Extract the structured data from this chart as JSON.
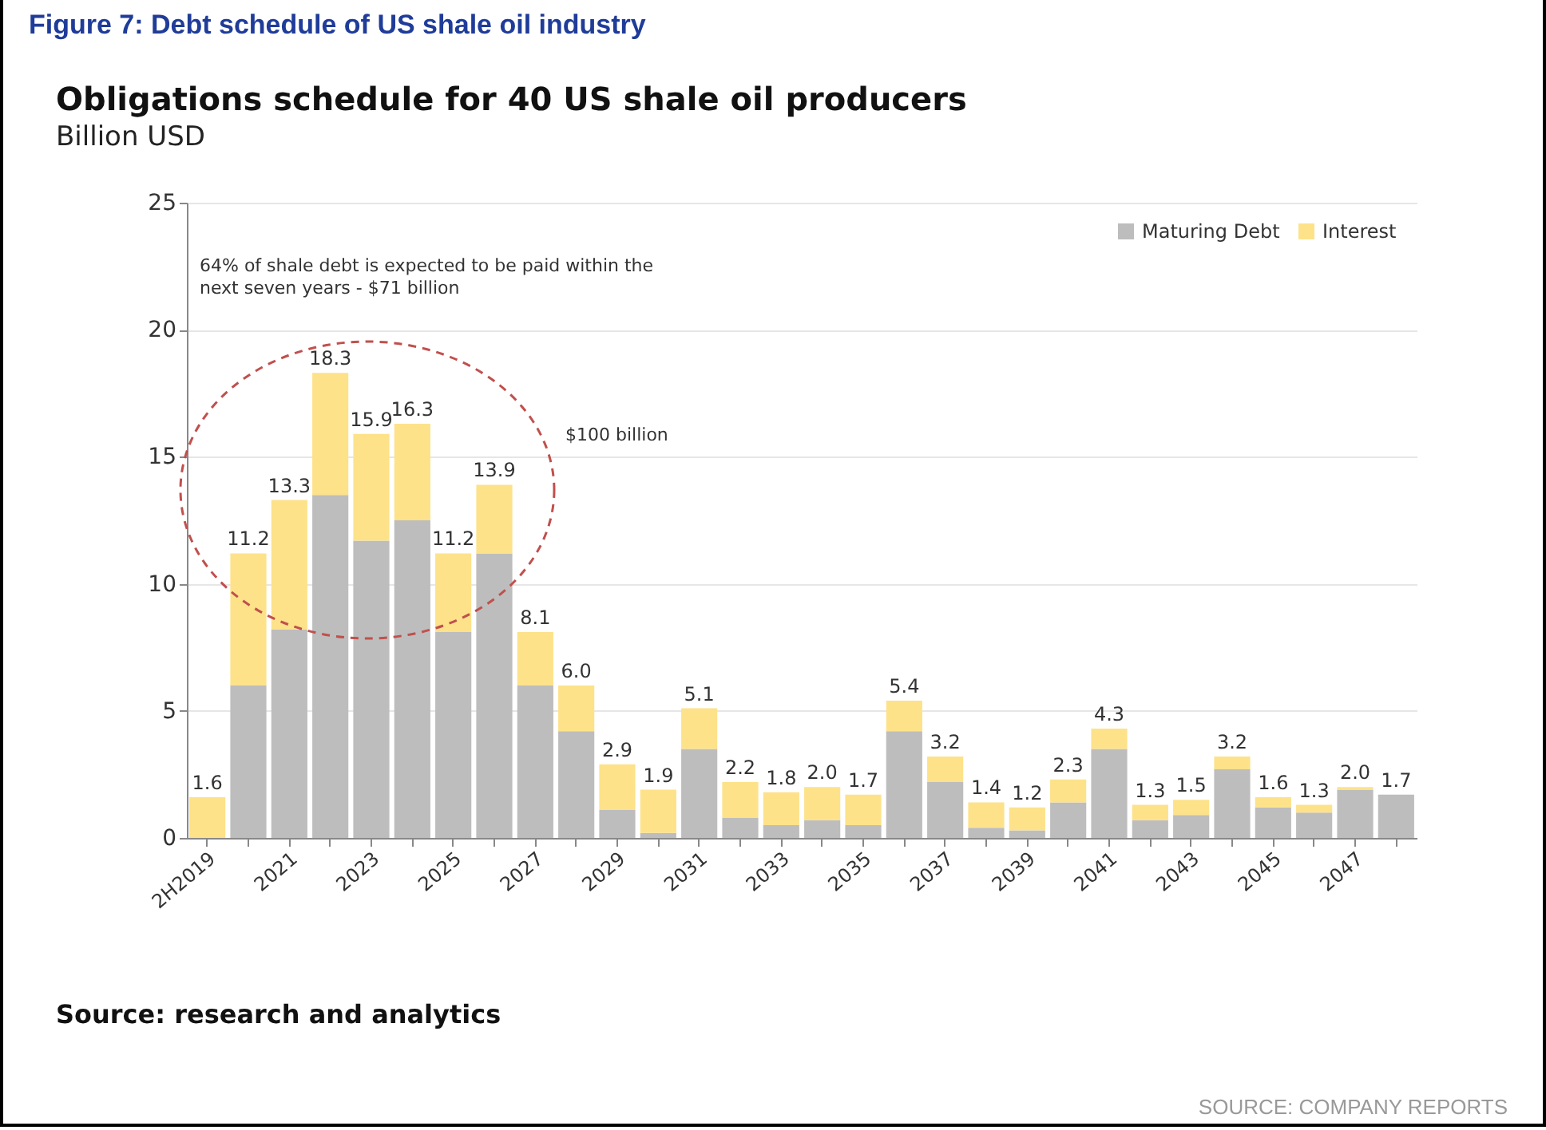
{
  "chart_data": {
    "type": "bar",
    "title": "Figure 7: Debt schedule of US shale oil industry",
    "subtitle": "Obligations schedule for 40 US shale oil producers",
    "ylabel": "Billion USD",
    "categories": [
      "2H2019",
      null,
      "2021",
      null,
      "2023",
      null,
      "2025",
      null,
      "2027",
      null,
      "2029",
      null,
      "2031",
      null,
      "2033",
      null,
      "2035",
      null,
      "2037",
      null,
      "2039",
      null,
      "2041",
      null,
      "2043",
      null,
      "2045",
      null,
      "2047",
      null
    ],
    "stacked": true,
    "series": [
      {
        "name": "Maturing Debt",
        "color": "#bdbdbd",
        "values": [
          0,
          6.0,
          8.2,
          13.5,
          11.7,
          12.5,
          8.1,
          11.2,
          6.0,
          4.2,
          1.1,
          0.2,
          3.5,
          0.8,
          0.5,
          0.7,
          0.5,
          4.2,
          2.2,
          0.4,
          0.3,
          1.4,
          3.5,
          0.7,
          0.9,
          2.7,
          1.2,
          1.0,
          1.9,
          1.7
        ]
      },
      {
        "name": "Interest",
        "color": "#fde28a",
        "values": [
          1.6,
          5.2,
          5.1,
          4.8,
          4.2,
          3.8,
          3.1,
          2.7,
          2.1,
          1.8,
          1.8,
          1.7,
          1.6,
          1.4,
          1.3,
          1.3,
          1.2,
          1.2,
          1.0,
          1.0,
          0.9,
          0.9,
          0.8,
          0.6,
          0.6,
          0.5,
          0.4,
          0.3,
          0.1,
          0
        ]
      }
    ],
    "totals": [
      "1.6",
      "11.2",
      "13.3",
      "18.3",
      "15.9",
      "16.3",
      "11.2",
      "13.9",
      "8.1",
      "6.0",
      "2.9",
      "1.9",
      "5.1",
      "2.2",
      "1.8",
      "2.0",
      "1.7",
      "5.4",
      "3.2",
      "1.4",
      "1.2",
      "2.3",
      "4.3",
      "1.3",
      "1.5",
      "3.2",
      "1.6",
      "1.3",
      "2.0",
      "1.7"
    ],
    "ylim": [
      0,
      25
    ],
    "yticks": [
      0,
      5,
      10,
      15,
      20,
      25
    ],
    "grid": "y",
    "legend": "top right",
    "annotations": [
      "64% of shale debt is expected to be paid within the next seven years - $71 billion",
      "$100 billion",
      "Source: research and analytics",
      "SOURCE: COMPANY REPORTS"
    ]
  }
}
